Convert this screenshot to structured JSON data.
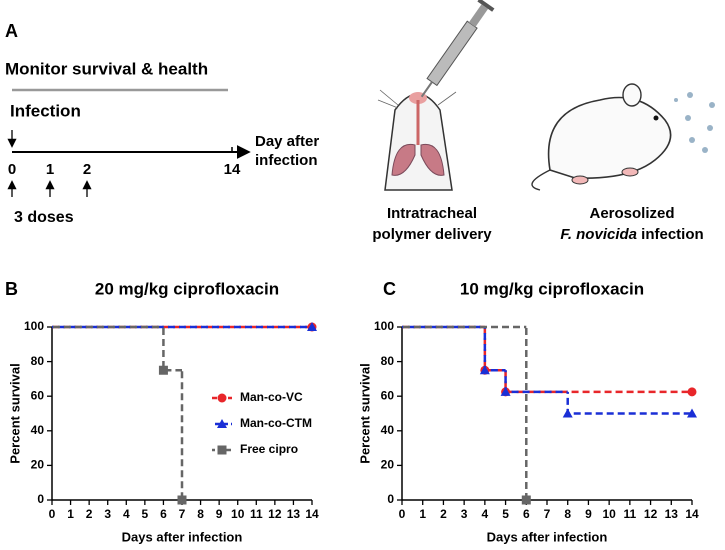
{
  "panel_a": {
    "letter": "A",
    "monitor": "Monitor survival & health",
    "infection": "Infection",
    "timeline_ticks": [
      "0",
      "1",
      "2",
      "14"
    ],
    "timeline_label": [
      "Day after",
      "infection"
    ],
    "doses": "3 doses",
    "delivery_label": [
      "Intratracheal",
      "polymer delivery"
    ],
    "aerosol_label": [
      "Aerosolized",
      "F. novicida",
      "infection"
    ]
  },
  "chart_data": [
    {
      "type": "survival",
      "letter": "B",
      "title": "20 mg/kg ciprofloxacin",
      "xlabel": "Days after infection",
      "ylabel": "Percent survival",
      "xlim": [
        0,
        14
      ],
      "xticks": [
        0,
        1,
        2,
        3,
        4,
        5,
        6,
        7,
        8,
        9,
        10,
        11,
        12,
        13,
        14
      ],
      "ylim": [
        0,
        100
      ],
      "yticks": [
        0,
        20,
        40,
        60,
        80,
        100
      ],
      "legend": "right",
      "series": [
        {
          "name": "Man-co-VC",
          "color": "#e8262a",
          "marker": "circle",
          "x": [
            0,
            14
          ],
          "values": [
            100,
            100
          ]
        },
        {
          "name": "Man-co-CTM",
          "color": "#1a2fd6",
          "marker": "triangle",
          "x": [
            0,
            14
          ],
          "values": [
            100,
            100
          ]
        },
        {
          "name": "Free cipro",
          "color": "#666666",
          "marker": "square",
          "x": [
            0,
            6,
            7
          ],
          "values": [
            100,
            75,
            0
          ]
        }
      ]
    },
    {
      "type": "survival",
      "letter": "C",
      "title": "10 mg/kg ciprofloxacin",
      "xlabel": "Days after infection",
      "ylabel": "Percent survival",
      "xlim": [
        0,
        14
      ],
      "xticks": [
        0,
        1,
        2,
        3,
        4,
        5,
        6,
        7,
        8,
        9,
        10,
        11,
        12,
        13,
        14
      ],
      "ylim": [
        0,
        100
      ],
      "yticks": [
        0,
        20,
        40,
        60,
        80,
        100
      ],
      "series": [
        {
          "name": "Man-co-VC",
          "color": "#e8262a",
          "marker": "circle",
          "x": [
            0,
            4,
            5,
            14
          ],
          "values": [
            100,
            75,
            62.5,
            62.5
          ]
        },
        {
          "name": "Man-co-CTM",
          "color": "#1a2fd6",
          "marker": "triangle",
          "x": [
            0,
            4,
            5,
            8,
            14
          ],
          "values": [
            100,
            75,
            62.5,
            50,
            50
          ]
        },
        {
          "name": "Free cipro",
          "color": "#666666",
          "marker": "square",
          "x": [
            0,
            6
          ],
          "values": [
            100,
            0
          ]
        }
      ]
    }
  ]
}
